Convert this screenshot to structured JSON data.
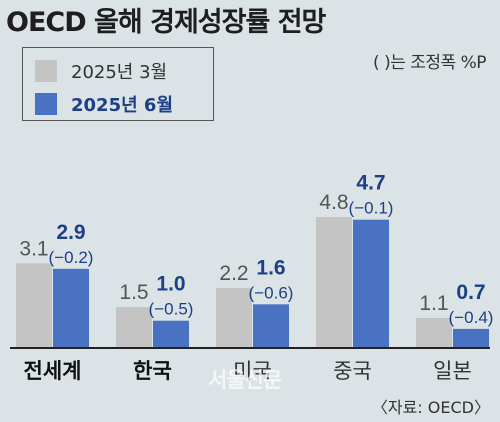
{
  "title": "OECD 올해 경제성장률 전망",
  "note": "(   )는 조정폭 %P",
  "watermark": "서울신문",
  "source": "〈자료: OECD〉",
  "colors": {
    "march": "#c4c4c4",
    "june": "#4a72c3",
    "june_text": "#1d3f86",
    "grid_text": "#555555"
  },
  "chart_data": {
    "type": "bar",
    "title": "OECD 올해 경제성장률 전망",
    "categories": [
      "전세계",
      "한국",
      "미국",
      "중국",
      "일본"
    ],
    "categories_bold": [
      true,
      true,
      false,
      false,
      false
    ],
    "series": [
      {
        "name": "2025년 3월",
        "values": [
          3.1,
          1.5,
          2.2,
          4.8,
          1.1
        ],
        "labels": [
          "3.1",
          "1.5",
          "2.2",
          "4.8",
          "1.1"
        ]
      },
      {
        "name": "2025년 6월",
        "values": [
          2.9,
          1.0,
          1.6,
          4.7,
          0.7
        ],
        "labels": [
          "2.9",
          "1.0",
          "1.6",
          "4.7",
          "0.7"
        ]
      }
    ],
    "adjustments": [
      "(−0.2)",
      "(−0.5)",
      "(−0.6)",
      "(−0.1)",
      "(−0.4)"
    ],
    "ylim": [
      0,
      5.6
    ],
    "xlabel": "",
    "ylabel": ""
  }
}
